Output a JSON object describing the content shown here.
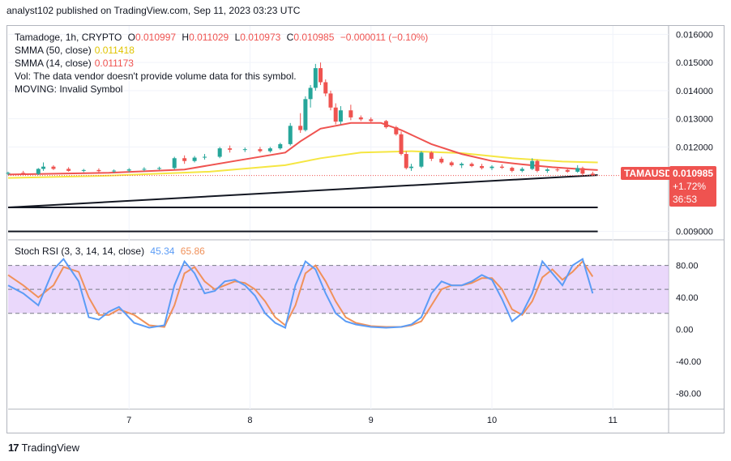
{
  "header": {
    "publisher_text": "analyst102 published on TradingView.com, Sep 11, 2023 03:23 UTC"
  },
  "legend": {
    "symbol_line": "Tamadoge, 1h, CRYPTO",
    "open_label": "O",
    "open": "0.010997",
    "high_label": "H",
    "high": "0.011029",
    "low_label": "L",
    "low": "0.010973",
    "close_label": "C",
    "close": "0.010985",
    "change": "−0.000011 (−0.10%)",
    "sma50_label": "SMMA (50, close)",
    "sma50_value": "0.011418",
    "sma14_label": "SMMA (14, close)",
    "sma14_value": "0.011173",
    "vol_text": "Vol: The data vendor doesn't provide volume data for this symbol.",
    "moving_text": "MOVING: Invalid Symbol",
    "stoch_label": "Stoch RSI (3, 3, 14, 14, close)",
    "stoch_k": "45.34",
    "stoch_d": "65.86"
  },
  "price_tag": {
    "symbol": "TAMAUSD",
    "price": "0.010985",
    "change_pct": "+1.72%",
    "countdown": "36:53"
  },
  "footer": {
    "logo_text": "17",
    "brand": "TradingView"
  },
  "colors": {
    "up": "#26a69a",
    "down": "#ef5350",
    "sma50": "#f5e642",
    "sma14": "#ef5350",
    "stoch_k": "#5b9cf6",
    "stoch_d": "#f0915a",
    "band": "#e1c8f9"
  },
  "chart_data": [
    {
      "type": "candlestick",
      "title": "Tamadoge, 1h, CRYPTO",
      "x_ticks": [
        "7",
        "8",
        "9",
        "10",
        "11"
      ],
      "y_ticks": [
        "0.016000",
        "0.015000",
        "0.014000",
        "0.013000",
        "0.012000",
        "0.009000"
      ],
      "ylim": [
        0.0087,
        0.0163
      ],
      "x_range_hours": [
        0,
        119
      ],
      "tick_hours": [
        24,
        48,
        72,
        96,
        120
      ],
      "candles": [
        [
          0,
          0.01105,
          0.01112,
          0.011,
          0.01108
        ],
        [
          3,
          0.01108,
          0.01115,
          0.01102,
          0.01104
        ],
        [
          6,
          0.01104,
          0.01125,
          0.011,
          0.01122
        ],
        [
          7,
          0.01122,
          0.01145,
          0.01115,
          0.0113
        ],
        [
          9,
          0.0113,
          0.01135,
          0.01118,
          0.01122
        ],
        [
          12,
          0.01122,
          0.01128,
          0.01112,
          0.01115
        ],
        [
          15,
          0.01115,
          0.01122,
          0.0111,
          0.01118
        ],
        [
          18,
          0.01118,
          0.01124,
          0.0111,
          0.01114
        ],
        [
          21,
          0.01114,
          0.0112,
          0.01108,
          0.01116
        ],
        [
          24,
          0.01116,
          0.01125,
          0.0111,
          0.0112
        ],
        [
          27,
          0.0112,
          0.01128,
          0.01114,
          0.01122
        ],
        [
          30,
          0.01122,
          0.0113,
          0.01118,
          0.01125
        ],
        [
          33,
          0.01125,
          0.01165,
          0.0112,
          0.0116
        ],
        [
          35,
          0.0116,
          0.0117,
          0.0114,
          0.0115
        ],
        [
          37,
          0.0115,
          0.01168,
          0.01145,
          0.01162
        ],
        [
          39,
          0.01162,
          0.01175,
          0.01155,
          0.01165
        ],
        [
          42,
          0.01165,
          0.012,
          0.0116,
          0.01195
        ],
        [
          44,
          0.01195,
          0.01205,
          0.0118,
          0.0119
        ],
        [
          47,
          0.0119,
          0.01198,
          0.01182,
          0.01192
        ],
        [
          50,
          0.01192,
          0.012,
          0.0118,
          0.01185
        ],
        [
          52,
          0.01185,
          0.012,
          0.0118,
          0.01195
        ],
        [
          54,
          0.01195,
          0.01215,
          0.0119,
          0.0121
        ],
        [
          56,
          0.0121,
          0.01285,
          0.01205,
          0.01275
        ],
        [
          58,
          0.01275,
          0.0132,
          0.0125,
          0.0126
        ],
        [
          59,
          0.0126,
          0.0138,
          0.01255,
          0.0137
        ],
        [
          60,
          0.0137,
          0.0142,
          0.0134,
          0.0141
        ],
        [
          61,
          0.0141,
          0.01495,
          0.014,
          0.0148
        ],
        [
          62,
          0.0148,
          0.015,
          0.0142,
          0.0143
        ],
        [
          63,
          0.0143,
          0.0144,
          0.0138,
          0.0139
        ],
        [
          64,
          0.0139,
          0.014,
          0.0133,
          0.0134
        ],
        [
          65,
          0.0134,
          0.01355,
          0.0128,
          0.0129
        ],
        [
          66,
          0.0129,
          0.01345,
          0.0128,
          0.0133
        ],
        [
          68,
          0.0133,
          0.0135,
          0.01295,
          0.01305
        ],
        [
          70,
          0.01305,
          0.01312,
          0.01292,
          0.01298
        ],
        [
          72,
          0.01298,
          0.01305,
          0.01285,
          0.01292
        ],
        [
          75,
          0.01292,
          0.01296,
          0.01265,
          0.0127
        ],
        [
          77,
          0.0127,
          0.01275,
          0.0124,
          0.01245
        ],
        [
          78,
          0.01245,
          0.01255,
          0.0117,
          0.01175
        ],
        [
          79,
          0.01175,
          0.01185,
          0.0112,
          0.01125
        ],
        [
          80,
          0.01125,
          0.0114,
          0.01115,
          0.0113
        ],
        [
          82,
          0.0113,
          0.01185,
          0.01125,
          0.0118
        ],
        [
          84,
          0.0118,
          0.01185,
          0.0115,
          0.01158
        ],
        [
          86,
          0.01158,
          0.01165,
          0.0114,
          0.01145
        ],
        [
          88,
          0.01145,
          0.0115,
          0.0113,
          0.01135
        ],
        [
          90,
          0.01135,
          0.01145,
          0.01125,
          0.0114
        ],
        [
          92,
          0.0114,
          0.01145,
          0.01128,
          0.01132
        ],
        [
          94,
          0.01132,
          0.0114,
          0.0112,
          0.01125
        ],
        [
          96,
          0.01125,
          0.01135,
          0.01118,
          0.0113
        ],
        [
          98,
          0.0113,
          0.01138,
          0.01122,
          0.01126
        ],
        [
          100,
          0.01126,
          0.0113,
          0.0111,
          0.01115
        ],
        [
          102,
          0.01115,
          0.01128,
          0.0111,
          0.01122
        ],
        [
          104,
          0.01122,
          0.0116,
          0.01118,
          0.0115
        ],
        [
          105,
          0.0115,
          0.01155,
          0.0111,
          0.01115
        ],
        [
          107,
          0.01115,
          0.01125,
          0.01108,
          0.0112
        ],
        [
          109,
          0.0112,
          0.01128,
          0.01112,
          0.01118
        ],
        [
          111,
          0.01118,
          0.01124,
          0.01108,
          0.01112
        ],
        [
          113,
          0.01112,
          0.01135,
          0.01108,
          0.01125
        ],
        [
          114,
          0.01125,
          0.0113,
          0.011,
          0.01105
        ],
        [
          116,
          0.01105,
          0.01112,
          0.01098,
          0.011
        ]
      ],
      "series": [
        {
          "name": "SMMA (50, close)",
          "x": [
            0,
            20,
            40,
            55,
            62,
            70,
            80,
            90,
            100,
            110,
            117
          ],
          "values": [
            0.0109,
            0.01098,
            0.01112,
            0.01135,
            0.0116,
            0.0118,
            0.01185,
            0.01178,
            0.0116,
            0.01148,
            0.01145
          ]
        },
        {
          "name": "SMMA (14, close)",
          "x": [
            0,
            20,
            35,
            45,
            55,
            58,
            62,
            68,
            74,
            78,
            84,
            90,
            96,
            102,
            108,
            113,
            117
          ],
          "values": [
            0.01102,
            0.01108,
            0.0112,
            0.0115,
            0.0118,
            0.0122,
            0.01265,
            0.01285,
            0.01285,
            0.0126,
            0.0121,
            0.01175,
            0.0115,
            0.01138,
            0.01128,
            0.01122,
            0.01118
          ]
        }
      ],
      "trendlines": [
        {
          "x": [
            0,
            117
          ],
          "values": [
            0.00985,
            0.011
          ]
        },
        {
          "x": [
            0,
            117
          ],
          "values": [
            0.00985,
            0.00985
          ]
        },
        {
          "x": [
            0,
            117
          ],
          "values": [
            0.009,
            0.009
          ]
        }
      ]
    },
    {
      "type": "line",
      "title": "Stoch RSI (3, 3, 14, 14, close)",
      "y_ticks": [
        "80.00",
        "40.00",
        "0.00",
        "-40.00",
        "-80.00"
      ],
      "ylim": [
        -100,
        110
      ],
      "band": [
        20,
        80
      ],
      "midline": 50,
      "series": [
        {
          "name": "K",
          "x": [
            0,
            3,
            6,
            9,
            11,
            14,
            16,
            18,
            20,
            22,
            25,
            28,
            31,
            33,
            35,
            37,
            39,
            41,
            43,
            45,
            47,
            49,
            51,
            53,
            55,
            57,
            59,
            61,
            63,
            65,
            67,
            69,
            72,
            75,
            78,
            80,
            82,
            84,
            86,
            88,
            90,
            92,
            94,
            96,
            98,
            100,
            102,
            104,
            106,
            108,
            110,
            112,
            114,
            116
          ],
          "values": [
            55,
            45,
            30,
            75,
            88,
            60,
            15,
            12,
            22,
            28,
            8,
            2,
            5,
            55,
            85,
            70,
            45,
            48,
            60,
            62,
            55,
            42,
            20,
            8,
            2,
            55,
            85,
            75,
            45,
            20,
            10,
            6,
            3,
            2,
            3,
            6,
            15,
            45,
            60,
            55,
            55,
            60,
            68,
            62,
            38,
            10,
            20,
            45,
            85,
            70,
            55,
            80,
            88,
            45
          ]
        },
        {
          "name": "D",
          "x": [
            0,
            3,
            6,
            9,
            11,
            14,
            16,
            18,
            20,
            22,
            25,
            28,
            31,
            33,
            35,
            37,
            39,
            41,
            43,
            45,
            47,
            49,
            51,
            53,
            55,
            57,
            59,
            61,
            63,
            65,
            67,
            69,
            72,
            75,
            78,
            80,
            82,
            84,
            86,
            88,
            90,
            92,
            94,
            96,
            98,
            100,
            102,
            104,
            106,
            108,
            110,
            112,
            114,
            116
          ],
          "values": [
            68,
            55,
            40,
            55,
            78,
            72,
            40,
            18,
            18,
            25,
            18,
            5,
            3,
            30,
            70,
            78,
            60,
            50,
            55,
            60,
            58,
            50,
            35,
            15,
            5,
            30,
            70,
            80,
            60,
            35,
            15,
            8,
            4,
            3,
            3,
            5,
            10,
            30,
            50,
            55,
            55,
            58,
            64,
            64,
            50,
            25,
            18,
            35,
            65,
            75,
            62,
            72,
            85,
            66
          ]
        }
      ]
    }
  ]
}
